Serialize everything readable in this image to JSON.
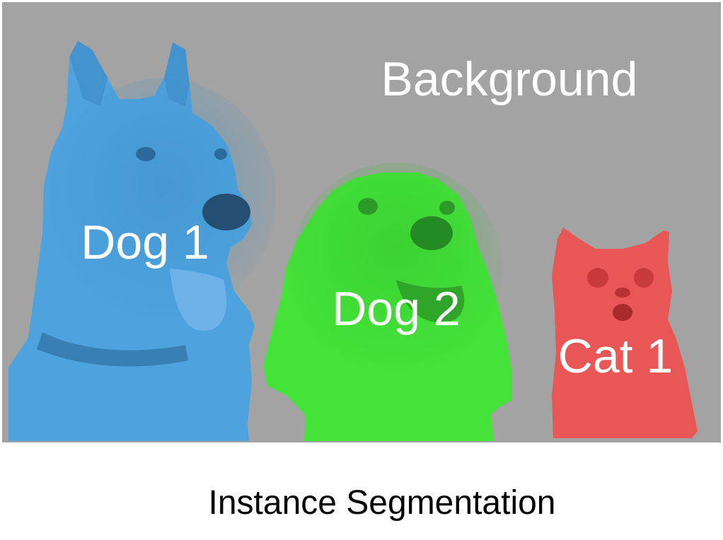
{
  "labels": {
    "background": "Background",
    "dog1": "Dog 1",
    "dog2": "Dog 2",
    "cat1": "Cat 1"
  },
  "caption": "Instance Segmentation",
  "colors": {
    "background": "#a3a3a3",
    "dog1": "#4ea3df",
    "dog2": "#45e239",
    "cat1": "#e85656",
    "label_text": "#ffffff",
    "caption_text": "#000000"
  }
}
